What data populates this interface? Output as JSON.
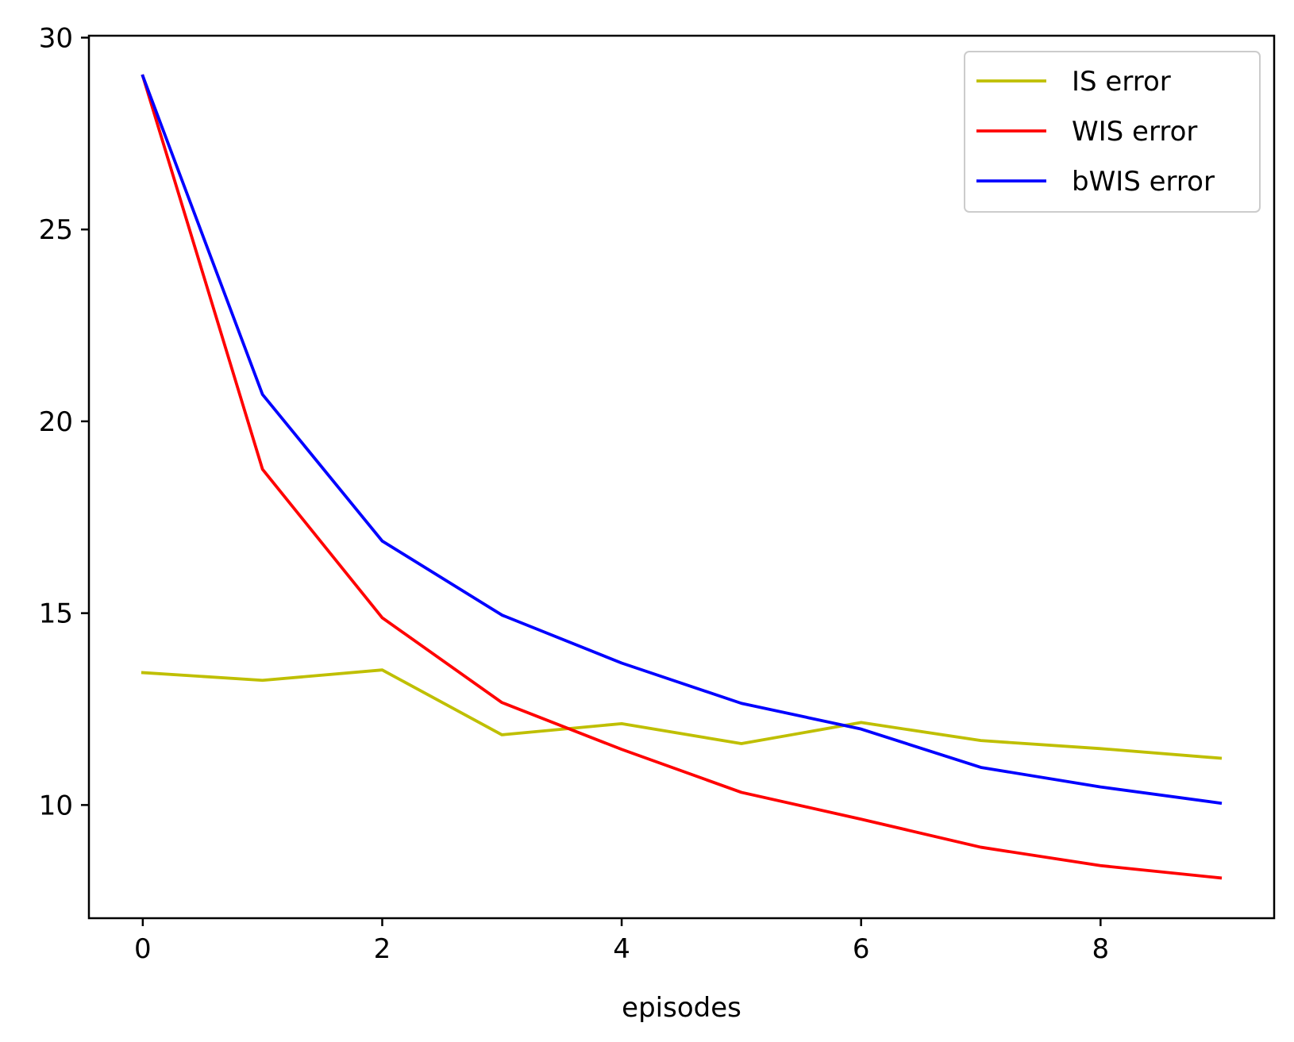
{
  "chart_data": {
    "type": "line",
    "title": "",
    "xlabel": "episodes",
    "ylabel": "",
    "xlim": [
      -0.45,
      9.45
    ],
    "ylim": [
      7.05,
      30.05
    ],
    "x_ticks": [
      0,
      2,
      4,
      6,
      8
    ],
    "y_ticks": [
      10,
      15,
      20,
      25,
      30
    ],
    "grid": false,
    "legend_position": "top-right",
    "x": [
      0,
      1,
      2,
      3,
      4,
      5,
      6,
      7,
      8,
      9
    ],
    "series": [
      {
        "name": "IS error",
        "color": "#bfbf00",
        "values": [
          13.45,
          13.25,
          13.52,
          11.83,
          12.12,
          11.6,
          12.15,
          11.68,
          11.47,
          11.22
        ]
      },
      {
        "name": "WIS error",
        "color": "#ff0000",
        "values": [
          29.0,
          18.75,
          14.88,
          12.67,
          11.45,
          10.33,
          9.63,
          8.9,
          8.42,
          8.1
        ]
      },
      {
        "name": "bWIS error",
        "color": "#0000ff",
        "values": [
          29.0,
          20.7,
          16.88,
          14.95,
          13.7,
          12.65,
          11.98,
          10.98,
          10.47,
          10.05
        ]
      }
    ]
  }
}
